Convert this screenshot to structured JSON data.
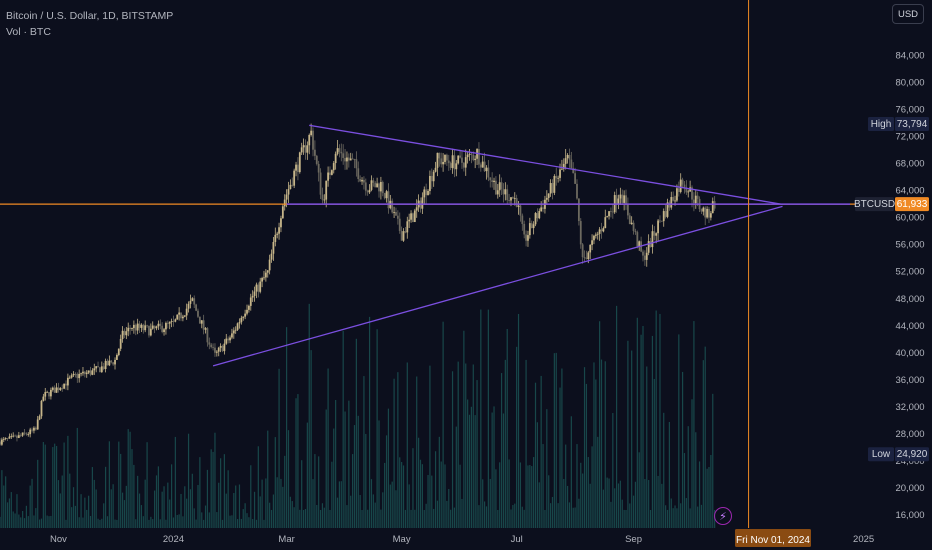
{
  "header": {
    "symbol_line": "Bitcoin / U.S. Dollar, 1D, BITSTAMP",
    "volume_line": "Vol · BTC"
  },
  "toolbar": {
    "currency_label": "USD"
  },
  "colors": {
    "background": "#0c0f1d",
    "up": "#c7b68a",
    "down": "#6d6a60",
    "trendline": "#7b4fe0",
    "horizontal_line": "#f08a24",
    "price_label": "#f08a24",
    "volume": "#1c5b5a"
  },
  "chart_data": {
    "type": "candlestick",
    "title": "Bitcoin / U.S. Dollar, 1D, BITSTAMP",
    "ylim": [
      14000,
      88000
    ],
    "y_ticks": [
      16000,
      20000,
      24000,
      28000,
      32000,
      36000,
      40000,
      44000,
      48000,
      52000,
      56000,
      60000,
      64000,
      68000,
      72000,
      76000,
      80000,
      84000
    ],
    "y_tick_labels": [
      "16,000",
      "20,000",
      "24,000",
      "28,000",
      "32,000",
      "36,000",
      "40,000",
      "44,000",
      "48,000",
      "52,000",
      "56,000",
      "60,000",
      "64,000",
      "68,000",
      "72,000",
      "76,000",
      "80,000",
      "84,000"
    ],
    "x_range": [
      "2023-10-01",
      "2025-01-15"
    ],
    "x_ticks": [
      "2023-11-01",
      "2024-01-01",
      "2024-03-01",
      "2024-05-01",
      "2024-07-01",
      "2024-09-01",
      "2025-01-01"
    ],
    "x_tick_labels": [
      "Nov",
      "2024",
      "Mar",
      "May",
      "Jul",
      "Sep",
      "2025"
    ],
    "price_series": [
      [
        "2023-10-01",
        26800
      ],
      [
        "2023-10-10",
        27400
      ],
      [
        "2023-10-20",
        28500
      ],
      [
        "2023-10-24",
        33500
      ],
      [
        "2023-11-01",
        34800
      ],
      [
        "2023-11-10",
        36500
      ],
      [
        "2023-11-20",
        37200
      ],
      [
        "2023-12-01",
        38800
      ],
      [
        "2023-12-05",
        42500
      ],
      [
        "2023-12-10",
        43800
      ],
      [
        "2023-12-20",
        43200
      ],
      [
        "2024-01-01",
        44200
      ],
      [
        "2024-01-11",
        47500
      ],
      [
        "2024-01-23",
        39500
      ],
      [
        "2024-02-01",
        42500
      ],
      [
        "2024-02-10",
        47500
      ],
      [
        "2024-02-20",
        51800
      ],
      [
        "2024-02-28",
        62000
      ],
      [
        "2024-03-05",
        66500
      ],
      [
        "2024-03-14",
        72500
      ],
      [
        "2024-03-20",
        62500
      ],
      [
        "2024-03-27",
        70000
      ],
      [
        "2024-04-05",
        68000
      ],
      [
        "2024-04-13",
        64500
      ],
      [
        "2024-04-20",
        64800
      ],
      [
        "2024-05-01",
        57500
      ],
      [
        "2024-05-10",
        61500
      ],
      [
        "2024-05-20",
        68500
      ],
      [
        "2024-06-01",
        68000
      ],
      [
        "2024-06-10",
        69500
      ],
      [
        "2024-06-20",
        64500
      ],
      [
        "2024-07-01",
        62500
      ],
      [
        "2024-07-05",
        56500
      ],
      [
        "2024-07-15",
        62000
      ],
      [
        "2024-07-28",
        68500
      ],
      [
        "2024-08-01",
        64800
      ],
      [
        "2024-08-05",
        53500
      ],
      [
        "2024-08-15",
        58500
      ],
      [
        "2024-08-25",
        64000
      ],
      [
        "2024-09-06",
        53800
      ],
      [
        "2024-09-15",
        59500
      ],
      [
        "2024-09-27",
        65500
      ],
      [
        "2024-10-05",
        62000
      ],
      [
        "2024-10-10",
        60200
      ],
      [
        "2024-10-14",
        62200
      ]
    ],
    "drawings": {
      "upper_trendline": [
        [
          "2024-03-13",
          73600
        ],
        [
          "2024-11-19",
          61900
        ]
      ],
      "lower_trendline": [
        [
          "2024-01-22",
          38000
        ],
        [
          "2024-11-19",
          61600
        ]
      ],
      "horizontal_line": 61933,
      "vertical_line": "2024-11-01"
    },
    "labels": {
      "high_text": "High",
      "high_value": "73,794",
      "low_text": "Low",
      "low_value": "24,920",
      "symbol_text": "BTCUSD",
      "last_value": "61,933",
      "crosshair_date": "Fri Nov 01, 2024"
    },
    "high_price": 73794,
    "low_price": 24920,
    "last_price": 61933,
    "volume_max_fraction": 0.45
  }
}
